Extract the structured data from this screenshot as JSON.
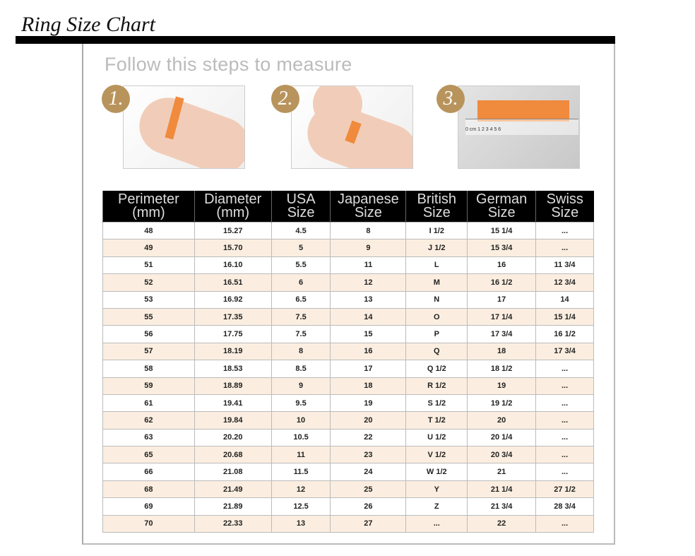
{
  "title": "Ring Size Chart",
  "subtitle": "Follow this steps to measure",
  "steps": [
    {
      "number": "1."
    },
    {
      "number": "2."
    },
    {
      "number": "3."
    }
  ],
  "ruler_label": "0 cm 1  2  3  4  5  6",
  "table": {
    "headers": [
      [
        "Perimeter",
        "(mm)"
      ],
      [
        "Diameter",
        "(mm)"
      ],
      [
        "USA",
        "Size"
      ],
      [
        "Japanese",
        "Size"
      ],
      [
        "British",
        "Size"
      ],
      [
        "German",
        "Size"
      ],
      [
        "Swiss",
        "Size"
      ]
    ],
    "rows": [
      [
        "48",
        "15.27",
        "4.5",
        "8",
        "I 1/2",
        "15 1/4",
        "..."
      ],
      [
        "49",
        "15.70",
        "5",
        "9",
        "J 1/2",
        "15 3/4",
        "..."
      ],
      [
        "51",
        "16.10",
        "5.5",
        "11",
        "L",
        "16",
        "11 3/4"
      ],
      [
        "52",
        "16.51",
        "6",
        "12",
        "M",
        "16 1/2",
        "12 3/4"
      ],
      [
        "53",
        "16.92",
        "6.5",
        "13",
        "N",
        "17",
        "14"
      ],
      [
        "55",
        "17.35",
        "7.5",
        "14",
        "O",
        "17 1/4",
        "15 1/4"
      ],
      [
        "56",
        "17.75",
        "7.5",
        "15",
        "P",
        "17 3/4",
        "16 1/2"
      ],
      [
        "57",
        "18.19",
        "8",
        "16",
        "Q",
        "18",
        "17 3/4"
      ],
      [
        "58",
        "18.53",
        "8.5",
        "17",
        "Q 1/2",
        "18 1/2",
        "..."
      ],
      [
        "59",
        "18.89",
        "9",
        "18",
        "R 1/2",
        "19",
        "..."
      ],
      [
        "61",
        "19.41",
        "9.5",
        "19",
        "S 1/2",
        "19 1/2",
        "..."
      ],
      [
        "62",
        "19.84",
        "10",
        "20",
        "T 1/2",
        "20",
        "..."
      ],
      [
        "63",
        "20.20",
        "10.5",
        "22",
        "U 1/2",
        "20 1/4",
        "..."
      ],
      [
        "65",
        "20.68",
        "11",
        "23",
        "V 1/2",
        "20 3/4",
        "..."
      ],
      [
        "66",
        "21.08",
        "11.5",
        "24",
        "W 1/2",
        "21",
        "..."
      ],
      [
        "68",
        "21.49",
        "12",
        "25",
        "Y",
        "21 1/4",
        "27 1/2"
      ],
      [
        "69",
        "21.89",
        "12.5",
        "26",
        "Z",
        "21 3/4",
        "28 3/4"
      ],
      [
        "70",
        "22.33",
        "13",
        "27",
        "...",
        "22",
        "..."
      ]
    ]
  }
}
